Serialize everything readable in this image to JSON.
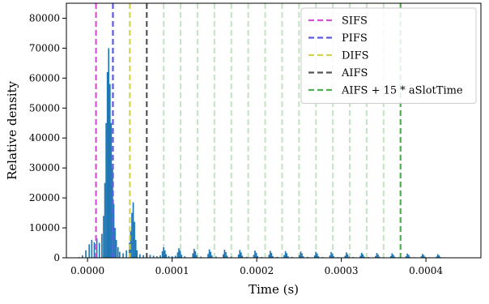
{
  "chart_data": {
    "type": "bar",
    "title": "",
    "xlabel": "Time (s)",
    "ylabel": "Relative density",
    "xlim": [
      -2.5e-05,
      0.000465
    ],
    "ylim": [
      0,
      85000
    ],
    "xticks": [
      0.0,
      0.0001,
      0.0002,
      0.0003,
      0.0004
    ],
    "xtick_labels": [
      "0.0000",
      "0.0001",
      "0.0002",
      "0.0003",
      "0.0004"
    ],
    "yticks": [
      0,
      10000,
      20000,
      30000,
      40000,
      50000,
      60000,
      70000,
      80000
    ],
    "ytick_labels": [
      "0",
      "10000",
      "20000",
      "30000",
      "40000",
      "50000",
      "60000",
      "70000",
      "80000"
    ],
    "grid": false,
    "legend_position": "top-right",
    "histogram": {
      "name": "",
      "color": "#1f77b4",
      "bin_width": 1.6e-06,
      "points": [
        [
          -1e-05,
          200
        ],
        [
          -6e-06,
          800
        ],
        [
          -2e-06,
          2500
        ],
        [
          2e-06,
          4500
        ],
        [
          5e-06,
          6000
        ],
        [
          8e-06,
          5200
        ],
        [
          1.1e-05,
          6500
        ],
        [
          1.4e-05,
          5000
        ],
        [
          1.7e-05,
          8000
        ],
        [
          1.9e-05,
          14000
        ],
        [
          2.05e-05,
          25000
        ],
        [
          2.2e-05,
          45000
        ],
        [
          2.35e-05,
          62000
        ],
        [
          2.5e-05,
          70000
        ],
        [
          2.65e-05,
          58000
        ],
        [
          2.8e-05,
          45000
        ],
        [
          2.95e-05,
          30000
        ],
        [
          3.1e-05,
          18000
        ],
        [
          3.25e-05,
          10000
        ],
        [
          3.4e-05,
          6000
        ],
        [
          3.6e-05,
          3500
        ],
        [
          3.8e-05,
          2000
        ],
        [
          4.2e-05,
          1500
        ],
        [
          4.6e-05,
          2500
        ],
        [
          4.95e-05,
          5000
        ],
        [
          5.1e-05,
          9000
        ],
        [
          5.25e-05,
          15000
        ],
        [
          5.4e-05,
          18500
        ],
        [
          5.55e-05,
          12000
        ],
        [
          5.7e-05,
          6000
        ],
        [
          5.85e-05,
          2500
        ],
        [
          6.2e-05,
          1200
        ],
        [
          6.6e-05,
          900
        ],
        [
          7e-05,
          800
        ],
        [
          7.4e-05,
          1000
        ],
        [
          7.8e-05,
          700
        ],
        [
          8.2e-05,
          500
        ],
        [
          8.6e-05,
          800
        ],
        [
          8.85e-05,
          2200
        ],
        [
          9e-05,
          3500
        ],
        [
          9.15e-05,
          2500
        ],
        [
          9.3e-05,
          1200
        ],
        [
          9.6e-05,
          600
        ],
        [
          0.0001,
          500
        ],
        [
          0.000104,
          700
        ],
        [
          0.0001065,
          1800
        ],
        [
          0.000108,
          3200
        ],
        [
          0.0001095,
          2400
        ],
        [
          0.000111,
          1000
        ],
        [
          0.000115,
          500
        ],
        [
          0.0001245,
          1500
        ],
        [
          0.000126,
          3000
        ],
        [
          0.0001275,
          2200
        ],
        [
          0.000129,
          900
        ],
        [
          0.000134,
          400
        ],
        [
          0.0001425,
          1300
        ],
        [
          0.000144,
          2800
        ],
        [
          0.0001455,
          2000
        ],
        [
          0.000147,
          800
        ],
        [
          0.000152,
          400
        ],
        [
          0.0001605,
          1200
        ],
        [
          0.000162,
          2700
        ],
        [
          0.0001635,
          1900
        ],
        [
          0.000165,
          700
        ],
        [
          0.00017,
          400
        ],
        [
          0.0001785,
          1100
        ],
        [
          0.00018,
          2600
        ],
        [
          0.0001815,
          1800
        ],
        [
          0.000183,
          700
        ],
        [
          0.000188,
          300
        ],
        [
          0.0001965,
          1000
        ],
        [
          0.000198,
          2400
        ],
        [
          0.0001995,
          1700
        ],
        [
          0.000201,
          600
        ],
        [
          0.000206,
          300
        ],
        [
          0.0002145,
          1000
        ],
        [
          0.000216,
          2300
        ],
        [
          0.0002175,
          1600
        ],
        [
          0.000219,
          600
        ],
        [
          0.000224,
          300
        ],
        [
          0.0002325,
          900
        ],
        [
          0.000234,
          2200
        ],
        [
          0.0002355,
          1500
        ],
        [
          0.000237,
          500
        ],
        [
          0.000242,
          300
        ],
        [
          0.0002505,
          900
        ],
        [
          0.000252,
          2100
        ],
        [
          0.0002535,
          1500
        ],
        [
          0.000255,
          500
        ],
        [
          0.00026,
          300
        ],
        [
          0.0002685,
          800
        ],
        [
          0.00027,
          2000
        ],
        [
          0.0002715,
          1400
        ],
        [
          0.000273,
          500
        ],
        [
          0.000278,
          250
        ],
        [
          0.0002865,
          800
        ],
        [
          0.000288,
          1900
        ],
        [
          0.0002895,
          1300
        ],
        [
          0.000291,
          500
        ],
        [
          0.000296,
          250
        ],
        [
          0.0003045,
          700
        ],
        [
          0.000306,
          1800
        ],
        [
          0.0003075,
          1200
        ],
        [
          0.000309,
          400
        ],
        [
          0.000314,
          250
        ],
        [
          0.0003225,
          700
        ],
        [
          0.000324,
          1700
        ],
        [
          0.0003255,
          1200
        ],
        [
          0.000327,
          400
        ],
        [
          0.000332,
          250
        ],
        [
          0.0003405,
          600
        ],
        [
          0.000342,
          1600
        ],
        [
          0.0003435,
          1100
        ],
        [
          0.000345,
          400
        ],
        [
          0.00035,
          200
        ],
        [
          0.0003585,
          600
        ],
        [
          0.00036,
          1500
        ],
        [
          0.0003615,
          1000
        ],
        [
          0.000363,
          400
        ],
        [
          0.000368,
          200
        ],
        [
          0.0003765,
          500
        ],
        [
          0.000378,
          1400
        ],
        [
          0.0003795,
          1000
        ],
        [
          0.000381,
          350
        ],
        [
          0.000386,
          200
        ],
        [
          0.0003945,
          500
        ],
        [
          0.000396,
          1300
        ],
        [
          0.0003975,
          900
        ],
        [
          0.000399,
          350
        ],
        [
          0.000404,
          200
        ],
        [
          0.0004125,
          400
        ],
        [
          0.000414,
          1200
        ],
        [
          0.0004155,
          800
        ],
        [
          0.000417,
          300
        ],
        [
          0.000422,
          150
        ],
        [
          0.000428,
          100
        ],
        [
          0.000434,
          80
        ],
        [
          0.00044,
          50
        ]
      ]
    },
    "vlines": [
      {
        "label": "SIFS",
        "x": 1e-05,
        "color": "#d64fd6"
      },
      {
        "label": "PIFS",
        "x": 3e-05,
        "color": "#5a5ae6"
      },
      {
        "label": "DIFS",
        "x": 5e-05,
        "color": "#d4d44a"
      },
      {
        "label": "AIFS",
        "x": 7e-05,
        "color": "#555555"
      },
      {
        "label": "AIFS + 15 * aSlotTime",
        "x": 0.00037,
        "color": "#4caf50"
      }
    ],
    "slot_lines": {
      "color": "#c8e4c8",
      "x": [
        9e-05,
        0.00011,
        0.00013,
        0.00015,
        0.00017,
        0.00019,
        0.00021,
        0.00023,
        0.00025,
        0.00027,
        0.00029,
        0.00031,
        0.00033,
        0.00035
      ]
    }
  }
}
